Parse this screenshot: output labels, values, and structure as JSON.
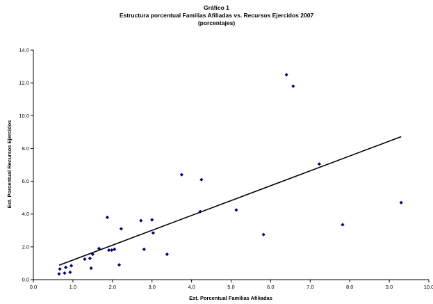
{
  "chart_data": {
    "type": "scatter",
    "title_lines": [
      "Gráfico 1",
      "Estructura porcentual Familias Afiliadas vs. Recursos Ejercidos 2007",
      "(porcentajes)"
    ],
    "xlabel": "Est. Porcentual Familias Afiliadas",
    "ylabel": "Est. Porcentual Recursos Ejercidos",
    "xlim": [
      0,
      10
    ],
    "ylim": [
      0,
      14
    ],
    "x_ticks": [
      "0.0",
      "1.0",
      "2.0",
      "3.0",
      "4.0",
      "5.0",
      "6.0",
      "7.0",
      "8.0",
      "9.0",
      "10.0"
    ],
    "y_ticks": [
      "0.0",
      "2.0",
      "4.0",
      "6.0",
      "8.0",
      "10.0",
      "12.0",
      "14.0"
    ],
    "marker_color": "#000080",
    "trendline_color": "#000000",
    "grid": false,
    "legend": false,
    "points": [
      {
        "x": 0.65,
        "y": 0.35
      },
      {
        "x": 0.67,
        "y": 0.65
      },
      {
        "x": 0.79,
        "y": 0.4
      },
      {
        "x": 0.82,
        "y": 0.75
      },
      {
        "x": 0.93,
        "y": 0.45
      },
      {
        "x": 0.96,
        "y": 0.85
      },
      {
        "x": 1.3,
        "y": 1.25
      },
      {
        "x": 1.43,
        "y": 1.3
      },
      {
        "x": 1.46,
        "y": 0.7
      },
      {
        "x": 1.5,
        "y": 1.55
      },
      {
        "x": 1.66,
        "y": 1.9
      },
      {
        "x": 1.87,
        "y": 3.8
      },
      {
        "x": 1.91,
        "y": 1.8
      },
      {
        "x": 1.98,
        "y": 1.8
      },
      {
        "x": 2.05,
        "y": 1.85
      },
      {
        "x": 2.17,
        "y": 0.9
      },
      {
        "x": 2.22,
        "y": 3.1
      },
      {
        "x": 2.72,
        "y": 3.6
      },
      {
        "x": 2.8,
        "y": 1.85
      },
      {
        "x": 3.0,
        "y": 3.65
      },
      {
        "x": 3.03,
        "y": 2.85
      },
      {
        "x": 3.38,
        "y": 1.55
      },
      {
        "x": 3.75,
        "y": 6.4
      },
      {
        "x": 4.22,
        "y": 4.15
      },
      {
        "x": 4.25,
        "y": 6.1
      },
      {
        "x": 5.13,
        "y": 4.25
      },
      {
        "x": 5.82,
        "y": 2.75
      },
      {
        "x": 6.4,
        "y": 12.5
      },
      {
        "x": 6.57,
        "y": 11.8
      },
      {
        "x": 7.23,
        "y": 7.05
      },
      {
        "x": 7.82,
        "y": 3.35
      },
      {
        "x": 9.3,
        "y": 4.7
      }
    ],
    "trendline": {
      "x": [
        0.65,
        9.3
      ],
      "y": [
        0.88,
        8.72
      ]
    }
  }
}
